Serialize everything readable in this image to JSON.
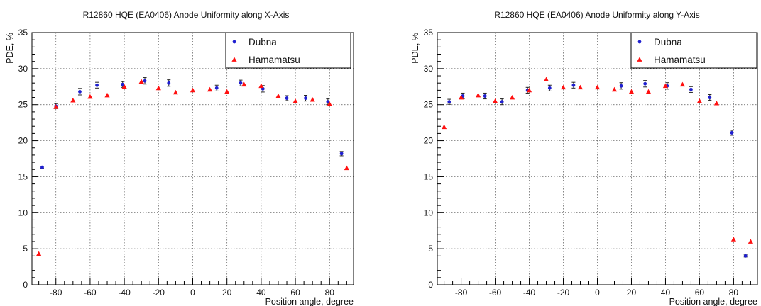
{
  "chart_data": [
    {
      "type": "scatter",
      "title": "R12860 HQE (EA0406) Anode Uniformity along X-Axis",
      "xlabel": "Position angle, degree",
      "ylabel": "PDE, %",
      "xlim": [
        -94,
        94
      ],
      "ylim": [
        0,
        35
      ],
      "xticks": [
        -80,
        -60,
        -40,
        -20,
        0,
        20,
        40,
        60,
        80
      ],
      "yticks": [
        0,
        5,
        10,
        15,
        20,
        25,
        30,
        35
      ],
      "grid": true,
      "legend": "top-right",
      "series": [
        {
          "name": "Dubna",
          "marker": "circle",
          "color": "#1f1fd0",
          "error_bars": true,
          "x": [
            -88,
            -80,
            -66,
            -56,
            -41,
            -28,
            -14,
            14,
            28,
            41,
            55,
            66,
            79,
            87
          ],
          "y": [
            16.3,
            24.8,
            26.8,
            27.7,
            27.8,
            28.3,
            28.0,
            27.3,
            28.0,
            27.2,
            25.9,
            25.9,
            25.4,
            18.2
          ],
          "err": [
            0.15,
            0.35,
            0.45,
            0.4,
            0.4,
            0.45,
            0.45,
            0.4,
            0.4,
            0.45,
            0.35,
            0.4,
            0.4,
            0.3
          ]
        },
        {
          "name": "Hamamatsu",
          "marker": "triangle",
          "color": "#ff1010",
          "x": [
            -90,
            -80,
            -70,
            -60,
            -50,
            -40,
            -30,
            -20,
            -10,
            0,
            10,
            20,
            30,
            40,
            50,
            60,
            70,
            80,
            90
          ],
          "y": [
            4.3,
            24.7,
            25.6,
            26.1,
            26.3,
            27.5,
            28.2,
            27.3,
            26.7,
            27.0,
            27.1,
            26.8,
            27.8,
            27.6,
            26.2,
            25.5,
            25.7,
            25.1,
            16.2
          ]
        }
      ]
    },
    {
      "type": "scatter",
      "title": "R12860 HQE (EA0406) Anode Uniformity along Y-Axis",
      "xlabel": "Position angle, degree",
      "ylabel": "PDE, %",
      "xlim": [
        -94,
        94
      ],
      "ylim": [
        0,
        35
      ],
      "xticks": [
        -80,
        -60,
        -40,
        -20,
        0,
        20,
        40,
        60,
        80
      ],
      "yticks": [
        0,
        5,
        10,
        15,
        20,
        25,
        30,
        35
      ],
      "grid": true,
      "legend": "top-right",
      "series": [
        {
          "name": "Dubna",
          "marker": "circle",
          "color": "#1f1fd0",
          "error_bars": true,
          "x": [
            -87,
            -79,
            -66,
            -56,
            -41,
            -28,
            -14,
            14,
            28,
            41,
            55,
            66,
            79,
            87
          ],
          "y": [
            25.4,
            26.2,
            26.2,
            25.4,
            27.0,
            27.3,
            27.7,
            27.6,
            27.9,
            27.6,
            27.1,
            26.0,
            21.1,
            4.0
          ],
          "err": [
            0.35,
            0.4,
            0.4,
            0.4,
            0.4,
            0.4,
            0.4,
            0.45,
            0.45,
            0.45,
            0.4,
            0.4,
            0.35,
            0.15
          ]
        },
        {
          "name": "Hamamatsu",
          "marker": "triangle",
          "color": "#ff1010",
          "x": [
            -90,
            -80,
            -70,
            -60,
            -50,
            -40,
            -30,
            -20,
            -10,
            0,
            10,
            20,
            30,
            40,
            50,
            60,
            70,
            80,
            90
          ],
          "y": [
            21.9,
            26.0,
            26.3,
            25.5,
            26.0,
            27.0,
            28.5,
            27.4,
            27.4,
            27.4,
            27.1,
            26.8,
            26.8,
            27.6,
            27.8,
            25.5,
            25.2,
            6.3,
            6.0
          ]
        }
      ]
    }
  ]
}
